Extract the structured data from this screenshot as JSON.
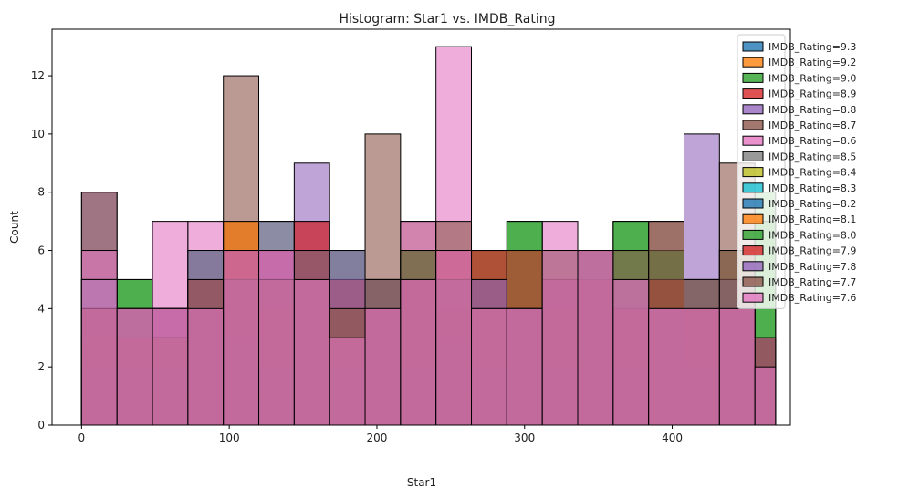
{
  "chart_data": {
    "type": "bar",
    "title": "Histogram: Star1 vs. IMDB_Rating",
    "xlabel": "Star1",
    "ylabel": "Count",
    "xlim": [
      -20,
      480
    ],
    "ylim": [
      0,
      13.6
    ],
    "xticks": [
      0,
      100,
      200,
      300,
      400
    ],
    "yticks": [
      0,
      2,
      4,
      6,
      8,
      10,
      12
    ],
    "legend_position": "top-right",
    "grid": false,
    "bin_edges": [
      0,
      24,
      48,
      72,
      96,
      120,
      144,
      168,
      192,
      216,
      240,
      264,
      288,
      312,
      336,
      360,
      384,
      408,
      432,
      456,
      470
    ],
    "series": [
      {
        "name": "IMDB_Rating=9.3",
        "color": "#1f77b4",
        "values": [
          1,
          0,
          0,
          0,
          0,
          0,
          0,
          0,
          0,
          0,
          0,
          0,
          0,
          0,
          0,
          0,
          0,
          0,
          0,
          1
        ]
      },
      {
        "name": "IMDB_Rating=9.2",
        "color": "#ff7f0e",
        "values": [
          2,
          1,
          3,
          4,
          7,
          5,
          4,
          3,
          2,
          3,
          4,
          3,
          2,
          3,
          4,
          3,
          3,
          2,
          3,
          1
        ]
      },
      {
        "name": "IMDB_Rating=9.0",
        "color": "#2ca02c",
        "values": [
          3,
          5,
          4,
          5,
          6,
          7,
          5,
          4,
          3,
          5,
          4,
          5,
          7,
          4,
          6,
          7,
          6,
          5,
          6,
          8
        ]
      },
      {
        "name": "IMDB_Rating=8.9",
        "color": "#d62728",
        "values": [
          3,
          4,
          3,
          5,
          6,
          5,
          7,
          5,
          4,
          5,
          4,
          6,
          4,
          5,
          4,
          4,
          5,
          4,
          5,
          3
        ]
      },
      {
        "name": "IMDB_Rating=8.8",
        "color": "#9467bd",
        "values": [
          8,
          4,
          3,
          6,
          5,
          7,
          9,
          6,
          5,
          4,
          3,
          5,
          4,
          5,
          4,
          3,
          4,
          10,
          5,
          2
        ]
      },
      {
        "name": "IMDB_Rating=8.7",
        "color": "#8c564b",
        "values": [
          8,
          2,
          4,
          3,
          12,
          6,
          5,
          4,
          10,
          7,
          3,
          4,
          3,
          4,
          6,
          3,
          7,
          4,
          9,
          3
        ]
      },
      {
        "name": "IMDB_Rating=8.6",
        "color": "#e377c2",
        "values": [
          6,
          4,
          7,
          7,
          6,
          6,
          5,
          3,
          4,
          7,
          13,
          4,
          4,
          7,
          6,
          4,
          4,
          4,
          4,
          2
        ]
      },
      {
        "name": "IMDB_Rating=8.5",
        "color": "#7f7f7f",
        "values": [
          2,
          1,
          2,
          1,
          2,
          1,
          2,
          1,
          2,
          1,
          2,
          1,
          2,
          1,
          2,
          1,
          2,
          1,
          2,
          1
        ]
      },
      {
        "name": "IMDB_Rating=8.4",
        "color": "#bcbd22",
        "values": [
          1,
          1,
          2,
          1,
          1,
          1,
          2,
          1,
          1,
          1,
          2,
          1,
          1,
          1,
          2,
          1,
          1,
          1,
          1,
          1
        ]
      },
      {
        "name": "IMDB_Rating=8.3",
        "color": "#17becf",
        "values": [
          1,
          2,
          1,
          2,
          1,
          2,
          1,
          1,
          2,
          1,
          1,
          2,
          1,
          1,
          2,
          1,
          1,
          2,
          1,
          1
        ]
      },
      {
        "name": "IMDB_Rating=8.2",
        "color": "#1f77b4",
        "values": [
          2,
          2,
          2,
          3,
          3,
          2,
          3,
          2,
          3,
          2,
          3,
          2,
          3,
          2,
          3,
          2,
          3,
          2,
          3,
          2
        ]
      },
      {
        "name": "IMDB_Rating=8.1",
        "color": "#ff7f0e",
        "values": [
          3,
          3,
          4,
          3,
          7,
          4,
          3,
          4,
          3,
          4,
          3,
          4,
          3,
          4,
          3,
          4,
          3,
          4,
          3,
          3
        ]
      },
      {
        "name": "IMDB_Rating=8.0",
        "color": "#2ca02c",
        "values": [
          5,
          5,
          4,
          6,
          5,
          6,
          5,
          6,
          5,
          6,
          5,
          6,
          7,
          6,
          6,
          7,
          6,
          5,
          5,
          7
        ]
      },
      {
        "name": "IMDB_Rating=7.9",
        "color": "#d62728",
        "values": [
          4,
          3,
          4,
          5,
          6,
          6,
          7,
          5,
          4,
          5,
          6,
          6,
          6,
          5,
          5,
          4,
          5,
          4,
          4,
          3
        ]
      },
      {
        "name": "IMDB_Rating=7.8",
        "color": "#9467bd",
        "values": [
          5,
          4,
          4,
          6,
          5,
          6,
          6,
          6,
          5,
          5,
          5,
          5,
          4,
          5,
          6,
          5,
          4,
          5,
          5,
          3
        ]
      },
      {
        "name": "IMDB_Rating=7.7",
        "color": "#8c564b",
        "values": [
          4,
          4,
          3,
          5,
          6,
          5,
          6,
          4,
          5,
          6,
          7,
          4,
          4,
          6,
          6,
          6,
          7,
          5,
          6,
          3
        ]
      },
      {
        "name": "IMDB_Rating=7.6",
        "color": "#e377c2",
        "values": [
          5,
          4,
          4,
          4,
          6,
          6,
          5,
          3,
          4,
          5,
          6,
          4,
          4,
          6,
          6,
          5,
          4,
          4,
          4,
          2
        ]
      }
    ]
  }
}
